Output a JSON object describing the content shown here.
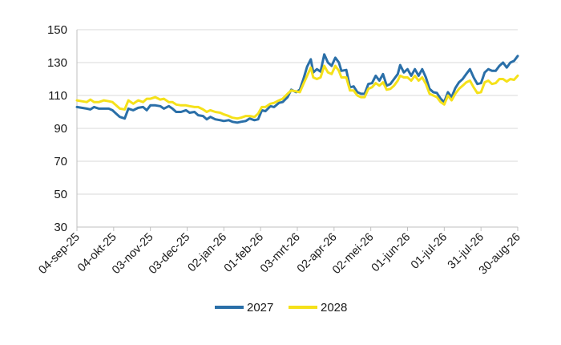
{
  "chart_data": {
    "type": "line",
    "title": "",
    "xlabel": "",
    "ylabel": "",
    "ylim": [
      30,
      150
    ],
    "yticks": [
      30,
      50,
      70,
      90,
      110,
      130,
      150
    ],
    "xlim": [
      "2025-09-04",
      "2026-08-30"
    ],
    "xtick_labels": [
      "04-sep-25",
      "04-okt-25",
      "03-nov-25",
      "03-dec-25",
      "02-jan-26",
      "01-feb-26",
      "03-mrt-26",
      "02-apr-26",
      "02-mei-26",
      "01-jun-26",
      "01-jul-26",
      "31-jul-26",
      "30-aug-26"
    ],
    "xtick_dates": [
      "2025-09-04",
      "2025-10-04",
      "2025-11-03",
      "2025-12-03",
      "2026-01-02",
      "2026-02-01",
      "2026-03-03",
      "2026-04-02",
      "2026-05-02",
      "2026-06-01",
      "2026-07-01",
      "2026-07-31",
      "2026-08-30"
    ],
    "grid": "horizontal",
    "legend_position": "bottom",
    "series": [
      {
        "name": "2027",
        "color": "#2a6fa8",
        "points": [
          [
            "2025-09-04",
            103
          ],
          [
            "2025-09-08",
            102.5
          ],
          [
            "2025-09-12",
            102
          ],
          [
            "2025-09-15",
            101.5
          ],
          [
            "2025-09-18",
            103
          ],
          [
            "2025-09-22",
            102
          ],
          [
            "2025-09-26",
            102
          ],
          [
            "2025-09-30",
            102
          ],
          [
            "2025-10-03",
            101
          ],
          [
            "2025-10-06",
            99
          ],
          [
            "2025-10-09",
            97
          ],
          [
            "2025-10-13",
            96
          ],
          [
            "2025-10-16",
            102
          ],
          [
            "2025-10-20",
            101
          ],
          [
            "2025-10-24",
            102.5
          ],
          [
            "2025-10-28",
            103
          ],
          [
            "2025-10-31",
            101
          ],
          [
            "2025-11-03",
            104
          ],
          [
            "2025-11-07",
            104
          ],
          [
            "2025-11-11",
            103.5
          ],
          [
            "2025-11-14",
            102
          ],
          [
            "2025-11-18",
            103.5
          ],
          [
            "2025-11-21",
            102
          ],
          [
            "2025-11-24",
            100
          ],
          [
            "2025-11-28",
            100
          ],
          [
            "2025-12-02",
            101
          ],
          [
            "2025-12-05",
            99.5
          ],
          [
            "2025-12-09",
            100
          ],
          [
            "2025-12-12",
            98
          ],
          [
            "2025-12-16",
            97.5
          ],
          [
            "2025-12-19",
            95.5
          ],
          [
            "2025-12-22",
            97
          ],
          [
            "2025-12-26",
            95.5
          ],
          [
            "2025-12-30",
            95
          ],
          [
            "2026-01-02",
            94.5
          ],
          [
            "2026-01-06",
            95
          ],
          [
            "2026-01-09",
            94
          ],
          [
            "2026-01-13",
            93.5
          ],
          [
            "2026-01-16",
            94
          ],
          [
            "2026-01-20",
            94.5
          ],
          [
            "2026-01-23",
            96
          ],
          [
            "2026-01-27",
            95
          ],
          [
            "2026-01-30",
            95.5
          ],
          [
            "2026-02-02",
            101
          ],
          [
            "2026-02-05",
            100.5
          ],
          [
            "2026-02-09",
            103.5
          ],
          [
            "2026-02-12",
            103
          ],
          [
            "2026-02-16",
            105.5
          ],
          [
            "2026-02-19",
            106
          ],
          [
            "2026-02-23",
            109
          ],
          [
            "2026-02-26",
            113.5
          ],
          [
            "2026-03-02",
            112
          ],
          [
            "2026-03-05",
            113.5
          ],
          [
            "2026-03-08",
            120
          ],
          [
            "2026-03-11",
            127.5
          ],
          [
            "2026-03-14",
            132
          ],
          [
            "2026-03-16",
            124
          ],
          [
            "2026-03-19",
            126
          ],
          [
            "2026-03-22",
            124.5
          ],
          [
            "2026-03-25",
            135
          ],
          [
            "2026-03-28",
            130
          ],
          [
            "2026-03-31",
            128
          ],
          [
            "2026-04-03",
            133
          ],
          [
            "2026-04-06",
            130
          ],
          [
            "2026-04-08",
            125
          ],
          [
            "2026-04-12",
            125.5
          ],
          [
            "2026-04-15",
            115
          ],
          [
            "2026-04-18",
            115.5
          ],
          [
            "2026-04-21",
            112
          ],
          [
            "2026-04-24",
            111
          ],
          [
            "2026-04-27",
            111
          ],
          [
            "2026-04-30",
            117
          ],
          [
            "2026-05-03",
            117.5
          ],
          [
            "2026-05-06",
            122
          ],
          [
            "2026-05-09",
            119
          ],
          [
            "2026-05-12",
            123
          ],
          [
            "2026-05-15",
            116
          ],
          [
            "2026-05-18",
            117
          ],
          [
            "2026-05-21",
            120
          ],
          [
            "2026-05-24",
            123
          ],
          [
            "2026-05-26",
            128.5
          ],
          [
            "2026-05-29",
            124
          ],
          [
            "2026-06-01",
            126
          ],
          [
            "2026-06-04",
            122
          ],
          [
            "2026-06-07",
            126
          ],
          [
            "2026-06-10",
            122
          ],
          [
            "2026-06-13",
            126
          ],
          [
            "2026-06-16",
            121
          ],
          [
            "2026-06-19",
            114
          ],
          [
            "2026-06-22",
            112
          ],
          [
            "2026-06-25",
            111.5
          ],
          [
            "2026-06-28",
            108
          ],
          [
            "2026-07-01",
            106
          ],
          [
            "2026-07-04",
            112
          ],
          [
            "2026-07-07",
            109
          ],
          [
            "2026-07-10",
            114.5
          ],
          [
            "2026-07-13",
            118
          ],
          [
            "2026-07-16",
            120
          ],
          [
            "2026-07-19",
            123
          ],
          [
            "2026-07-22",
            126
          ],
          [
            "2026-07-25",
            121
          ],
          [
            "2026-07-28",
            117
          ],
          [
            "2026-07-31",
            117.5
          ],
          [
            "2026-08-03",
            124
          ],
          [
            "2026-08-06",
            126
          ],
          [
            "2026-08-09",
            125
          ],
          [
            "2026-08-12",
            125
          ],
          [
            "2026-08-15",
            128
          ],
          [
            "2026-08-18",
            130
          ],
          [
            "2026-08-21",
            127
          ],
          [
            "2026-08-24",
            130
          ],
          [
            "2026-08-27",
            131
          ],
          [
            "2026-08-30",
            134
          ]
        ]
      },
      {
        "name": "2028",
        "color": "#f5e11a",
        "points": [
          [
            "2025-09-04",
            107
          ],
          [
            "2025-09-08",
            106.5
          ],
          [
            "2025-09-12",
            106
          ],
          [
            "2025-09-15",
            107.5
          ],
          [
            "2025-09-18",
            106
          ],
          [
            "2025-09-22",
            106
          ],
          [
            "2025-09-26",
            107
          ],
          [
            "2025-09-30",
            106.5
          ],
          [
            "2025-10-03",
            106
          ],
          [
            "2025-10-06",
            104
          ],
          [
            "2025-10-09",
            102
          ],
          [
            "2025-10-13",
            101.5
          ],
          [
            "2025-10-16",
            107
          ],
          [
            "2025-10-20",
            105
          ],
          [
            "2025-10-24",
            107
          ],
          [
            "2025-10-28",
            106
          ],
          [
            "2025-10-31",
            108
          ],
          [
            "2025-11-03",
            108
          ],
          [
            "2025-11-07",
            109
          ],
          [
            "2025-11-11",
            107.5
          ],
          [
            "2025-11-14",
            108
          ],
          [
            "2025-11-18",
            106
          ],
          [
            "2025-11-21",
            106
          ],
          [
            "2025-11-24",
            104.5
          ],
          [
            "2025-11-28",
            104
          ],
          [
            "2025-12-02",
            104
          ],
          [
            "2025-12-05",
            103.5
          ],
          [
            "2025-12-09",
            103
          ],
          [
            "2025-12-12",
            103
          ],
          [
            "2025-12-16",
            101.5
          ],
          [
            "2025-12-19",
            100
          ],
          [
            "2025-12-22",
            101
          ],
          [
            "2025-12-26",
            100
          ],
          [
            "2025-12-30",
            99.5
          ],
          [
            "2026-01-02",
            98.5
          ],
          [
            "2026-01-06",
            97.5
          ],
          [
            "2026-01-09",
            96.5
          ],
          [
            "2026-01-13",
            96
          ],
          [
            "2026-01-16",
            96.5
          ],
          [
            "2026-01-20",
            97.5
          ],
          [
            "2026-01-23",
            97.5
          ],
          [
            "2026-01-27",
            97
          ],
          [
            "2026-01-30",
            99
          ],
          [
            "2026-02-02",
            103
          ],
          [
            "2026-02-05",
            103
          ],
          [
            "2026-02-09",
            105
          ],
          [
            "2026-02-12",
            105.5
          ],
          [
            "2026-02-16",
            107
          ],
          [
            "2026-02-19",
            108
          ],
          [
            "2026-02-23",
            111
          ],
          [
            "2026-02-26",
            113
          ],
          [
            "2026-03-02",
            112.5
          ],
          [
            "2026-03-05",
            112
          ],
          [
            "2026-03-08",
            117
          ],
          [
            "2026-03-11",
            122
          ],
          [
            "2026-03-14",
            127
          ],
          [
            "2026-03-16",
            121
          ],
          [
            "2026-03-19",
            120
          ],
          [
            "2026-03-22",
            121
          ],
          [
            "2026-03-25",
            128
          ],
          [
            "2026-03-28",
            124
          ],
          [
            "2026-03-31",
            123
          ],
          [
            "2026-04-03",
            128
          ],
          [
            "2026-04-06",
            125
          ],
          [
            "2026-04-08",
            121
          ],
          [
            "2026-04-12",
            121
          ],
          [
            "2026-04-15",
            113
          ],
          [
            "2026-04-18",
            113
          ],
          [
            "2026-04-21",
            110
          ],
          [
            "2026-04-24",
            109
          ],
          [
            "2026-04-27",
            109
          ],
          [
            "2026-04-30",
            114
          ],
          [
            "2026-05-03",
            115
          ],
          [
            "2026-05-06",
            117.5
          ],
          [
            "2026-05-09",
            116
          ],
          [
            "2026-05-12",
            118
          ],
          [
            "2026-05-15",
            113.5
          ],
          [
            "2026-05-18",
            114
          ],
          [
            "2026-05-21",
            116
          ],
          [
            "2026-05-24",
            119
          ],
          [
            "2026-05-26",
            122
          ],
          [
            "2026-05-29",
            121
          ],
          [
            "2026-06-01",
            121
          ],
          [
            "2026-06-04",
            119
          ],
          [
            "2026-06-07",
            122
          ],
          [
            "2026-06-10",
            119
          ],
          [
            "2026-06-13",
            121
          ],
          [
            "2026-06-16",
            117
          ],
          [
            "2026-06-19",
            111
          ],
          [
            "2026-06-22",
            110
          ],
          [
            "2026-06-25",
            109
          ],
          [
            "2026-06-28",
            106
          ],
          [
            "2026-07-01",
            104.5
          ],
          [
            "2026-07-04",
            110
          ],
          [
            "2026-07-07",
            107
          ],
          [
            "2026-07-10",
            111
          ],
          [
            "2026-07-13",
            114
          ],
          [
            "2026-07-16",
            116
          ],
          [
            "2026-07-19",
            118
          ],
          [
            "2026-07-22",
            119
          ],
          [
            "2026-07-25",
            115
          ],
          [
            "2026-07-28",
            111.5
          ],
          [
            "2026-07-31",
            112
          ],
          [
            "2026-08-03",
            118
          ],
          [
            "2026-08-06",
            119
          ],
          [
            "2026-08-09",
            117
          ],
          [
            "2026-08-12",
            117.5
          ],
          [
            "2026-08-15",
            120
          ],
          [
            "2026-08-18",
            120
          ],
          [
            "2026-08-21",
            118.5
          ],
          [
            "2026-08-24",
            120
          ],
          [
            "2026-08-27",
            119.5
          ],
          [
            "2026-08-30",
            122
          ]
        ]
      }
    ]
  }
}
